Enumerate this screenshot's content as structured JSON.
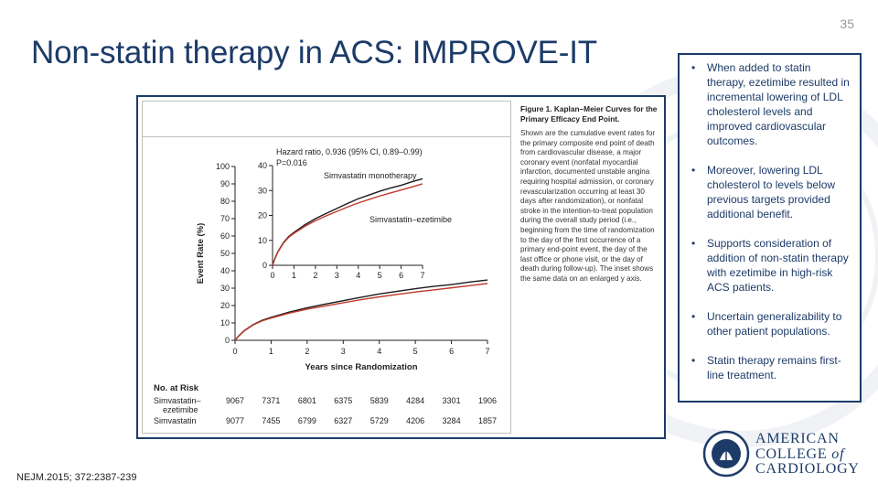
{
  "slide": {
    "number": "35",
    "title": "Non-statin therapy in ACS: IMPROVE-IT",
    "citation": "NEJM.2015; 372:2387-239"
  },
  "caption": {
    "title": "Figure 1. Kaplan–Meier Curves for the Primary Efficacy End Point.",
    "body": "Shown are the cumulative event rates for the primary composite end point of death from cardiovascular disease, a major coronary event (nonfatal myocardial infarction, documented unstable angina requiring hospital admission, or coronary revascularization occurring at least 30 days after randomization), or nonfatal stroke in the intention-to-treat population during the overall study period (i.e., beginning from the time of randomization to the day of the first occurrence of a primary end-point event, the day of the last office or phone visit, or the day of death during follow-up). The inset shows the same data on an enlarged y axis."
  },
  "bullets": [
    "When added to statin therapy, ezetimibe resulted in incremental lowering of LDL cholesterol levels and improved cardiovascular outcomes.",
    "Moreover, lowering LDL cholesterol to levels below previous targets provided additional benefit.",
    "Supports consideration of addition of non-statin therapy with ezetimibe in high-risk ACS patients.",
    "Uncertain generalizability to other patient populations.",
    "Statin therapy remains first-line treatment."
  ],
  "logo": {
    "line1": "AMERICAN",
    "line2_a": "COLLEGE ",
    "line2_b": "of",
    "line3": "CARDIOLOGY",
    "seal_text": "AMERICAN COLLEGE OF CARDIOLOGY"
  },
  "colors": {
    "brand_navy": "#1c3b68",
    "series_simvastatin": "#1a1a1a",
    "series_ezetimibe": "#c0392b"
  },
  "chart_data": {
    "type": "line",
    "title": "",
    "xlabel": "Years since Randomization",
    "ylabel": "Event Rate (%)",
    "xlim": [
      0,
      7
    ],
    "ylim": [
      0,
      100
    ],
    "x_ticks": [
      0,
      1,
      2,
      3,
      4,
      5,
      6,
      7
    ],
    "y_ticks": [
      0,
      10,
      20,
      30,
      40,
      50,
      60,
      70,
      80,
      90,
      100
    ],
    "series": [
      {
        "name": "Simvastatin monotherapy",
        "x": [
          0,
          0.1,
          0.25,
          0.5,
          0.75,
          1,
          1.5,
          2,
          2.5,
          3,
          3.5,
          4,
          4.5,
          5,
          5.5,
          6,
          6.5,
          7
        ],
        "values": [
          0,
          2.5,
          5.5,
          9,
          11.5,
          13.2,
          16.2,
          18.7,
          20.8,
          22.8,
          24.8,
          26.7,
          28.2,
          29.7,
          31.0,
          32.1,
          33.5,
          34.7
        ]
      },
      {
        "name": "Simvastatin–ezetimibe",
        "x": [
          0,
          0.1,
          0.25,
          0.5,
          0.75,
          1,
          1.5,
          2,
          2.5,
          3,
          3.5,
          4,
          4.5,
          5,
          5.5,
          6,
          6.5,
          7
        ],
        "values": [
          0,
          2.4,
          5.3,
          8.8,
          11.2,
          12.8,
          15.6,
          17.9,
          19.8,
          21.6,
          23.4,
          25.0,
          26.4,
          27.8,
          29.0,
          30.2,
          31.4,
          32.7
        ]
      }
    ],
    "inset": {
      "xlim": [
        0,
        7
      ],
      "ylim": [
        0,
        40
      ],
      "x_ticks": [
        0,
        1,
        2,
        3,
        4,
        5,
        6,
        7
      ],
      "y_ticks": [
        0,
        10,
        20,
        30,
        40
      ],
      "annotation_line1": "Hazard ratio, 0.936 (95% CI, 0.89–0.99)",
      "annotation_line2": "P=0.016",
      "label_simvastatin": "Simvastatin monotherapy",
      "label_ezetimibe": "Simvastatin–ezetimibe"
    },
    "risk_table": {
      "title": "No. at Risk",
      "rows": [
        {
          "label_line1": "Simvastatin–",
          "label_line2": "ezetimibe",
          "values": [
            "9067",
            "7371",
            "6801",
            "6375",
            "5839",
            "4284",
            "3301",
            "1906"
          ]
        },
        {
          "label_line1": "Simvastatin",
          "label_line2": "",
          "values": [
            "9077",
            "7455",
            "6799",
            "6327",
            "5729",
            "4206",
            "3284",
            "1857"
          ]
        }
      ]
    }
  }
}
